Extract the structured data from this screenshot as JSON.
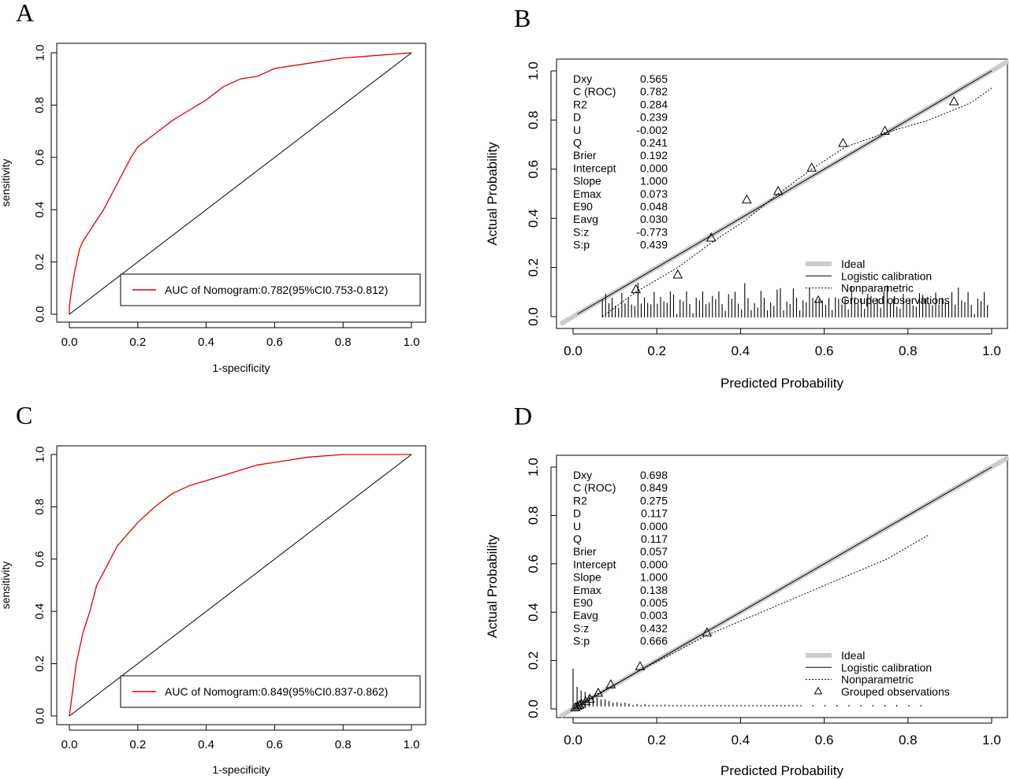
{
  "chart_data": [
    {
      "panel": "A",
      "type": "line",
      "xlabel": "1-specificity",
      "ylabel": "sensitivity",
      "xlim": [
        0,
        1
      ],
      "ylim": [
        0,
        1
      ],
      "xticks": [
        "0.0",
        "0.2",
        "0.4",
        "0.6",
        "0.8",
        "1.0"
      ],
      "yticks": [
        "0.0",
        "0.2",
        "0.4",
        "0.6",
        "0.8",
        "1.0"
      ],
      "legend": "AUC of Nomogram:0.782(95%CI0.753-0.812)",
      "legend_position": "bottom-right",
      "series": [
        {
          "color": "#e00000",
          "x": [
            0,
            0,
            0.005,
            0.01,
            0.015,
            0.02,
            0.025,
            0.03,
            0.04,
            0.05,
            0.06,
            0.07,
            0.08,
            0.1,
            0.12,
            0.14,
            0.16,
            0.18,
            0.2,
            0.22,
            0.25,
            0.28,
            0.3,
            0.35,
            0.4,
            0.45,
            0.5,
            0.55,
            0.6,
            0.7,
            0.8,
            0.9,
            1.0
          ],
          "y": [
            0,
            0.03,
            0.08,
            0.12,
            0.16,
            0.19,
            0.22,
            0.25,
            0.28,
            0.3,
            0.32,
            0.34,
            0.36,
            0.4,
            0.45,
            0.5,
            0.55,
            0.6,
            0.64,
            0.66,
            0.69,
            0.72,
            0.74,
            0.78,
            0.82,
            0.87,
            0.9,
            0.91,
            0.94,
            0.96,
            0.98,
            0.99,
            1.0
          ]
        },
        {
          "color": "#000000",
          "x": [
            0,
            1
          ],
          "y": [
            0,
            1
          ]
        }
      ]
    },
    {
      "panel": "B",
      "type": "line",
      "xlabel": "Predicted Probability",
      "ylabel": "Actual Probability",
      "xlim": [
        0,
        1
      ],
      "ylim": [
        0,
        1
      ],
      "xticks": [
        "0.0",
        "0.2",
        "0.4",
        "0.6",
        "0.8",
        "1.0"
      ],
      "yticks": [
        "0.0",
        "0.2",
        "0.4",
        "0.6",
        "0.8",
        "1.0"
      ],
      "stats": [
        [
          "Dxy",
          "0.565"
        ],
        [
          "C (ROC)",
          "0.782"
        ],
        [
          "R2",
          "0.284"
        ],
        [
          "D",
          "0.239"
        ],
        [
          "U",
          "-0.002"
        ],
        [
          "Q",
          "0.241"
        ],
        [
          "Brier",
          "0.192"
        ],
        [
          "Intercept",
          "0.000"
        ],
        [
          "Slope",
          "1.000"
        ],
        [
          "Emax",
          "0.073"
        ],
        [
          "E90",
          "0.048"
        ],
        [
          "Eavg",
          "0.030"
        ],
        [
          "S:z",
          "-0.773"
        ],
        [
          "S:p",
          "0.439"
        ]
      ],
      "legend": [
        "Ideal",
        "Logistic calibration",
        "Nonparametric",
        "Grouped observations"
      ],
      "legend_position": "bottom-right",
      "logistic": {
        "x": [
          0.01,
          1.0
        ],
        "y": [
          0.01,
          1.0
        ]
      },
      "nonparametric": {
        "x": [
          0.07,
          0.15,
          0.25,
          0.33,
          0.41,
          0.49,
          0.57,
          0.65,
          0.75,
          0.85,
          0.95,
          1.0
        ],
        "y": [
          0.0,
          0.1,
          0.2,
          0.3,
          0.39,
          0.5,
          0.6,
          0.69,
          0.75,
          0.8,
          0.87,
          0.93
        ]
      },
      "grouped": {
        "x": [
          0.15,
          0.25,
          0.33,
          0.415,
          0.49,
          0.57,
          0.645,
          0.745,
          0.91
        ],
        "y": [
          0.11,
          0.17,
          0.32,
          0.475,
          0.51,
          0.605,
          0.705,
          0.755,
          0.875
        ]
      },
      "rug": {
        "x_from": 0.07,
        "x_to": 0.99,
        "count": 120
      }
    },
    {
      "panel": "C",
      "type": "line",
      "xlabel": "1-specificity",
      "ylabel": "sensitivity",
      "xlim": [
        0,
        1
      ],
      "ylim": [
        0,
        1
      ],
      "xticks": [
        "0.0",
        "0.2",
        "0.4",
        "0.6",
        "0.8",
        "1.0"
      ],
      "yticks": [
        "0.0",
        "0.2",
        "0.4",
        "0.6",
        "0.8",
        "1.0"
      ],
      "legend": "AUC of Nomogram:0.849(95%CI0.837-0.862)",
      "legend_position": "bottom-right",
      "series": [
        {
          "color": "#e00000",
          "x": [
            0,
            0.005,
            0.01,
            0.015,
            0.02,
            0.03,
            0.04,
            0.05,
            0.06,
            0.07,
            0.08,
            0.1,
            0.12,
            0.14,
            0.16,
            0.18,
            0.2,
            0.25,
            0.3,
            0.35,
            0.4,
            0.45,
            0.5,
            0.55,
            0.6,
            0.7,
            0.8,
            0.9,
            1.0
          ],
          "y": [
            0,
            0.05,
            0.1,
            0.15,
            0.2,
            0.26,
            0.32,
            0.36,
            0.4,
            0.45,
            0.5,
            0.55,
            0.6,
            0.65,
            0.68,
            0.71,
            0.74,
            0.8,
            0.85,
            0.88,
            0.9,
            0.92,
            0.94,
            0.96,
            0.97,
            0.99,
            1.0,
            1.0,
            1.0
          ]
        },
        {
          "color": "#000000",
          "x": [
            0,
            1
          ],
          "y": [
            0,
            1
          ]
        }
      ]
    },
    {
      "panel": "D",
      "type": "line",
      "xlabel": "Predicted Probability",
      "ylabel": "Actual Probability",
      "xlim": [
        0,
        1
      ],
      "ylim": [
        0,
        1
      ],
      "xticks": [
        "0.0",
        "0.2",
        "0.4",
        "0.6",
        "0.8",
        "1.0"
      ],
      "yticks": [
        "0.0",
        "0.2",
        "0.4",
        "0.6",
        "0.8",
        "1.0"
      ],
      "stats": [
        [
          "Dxy",
          "0.698"
        ],
        [
          "C (ROC)",
          "0.849"
        ],
        [
          "R2",
          "0.275"
        ],
        [
          "D",
          "0.117"
        ],
        [
          "U",
          "0.000"
        ],
        [
          "Q",
          "0.117"
        ],
        [
          "Brier",
          "0.057"
        ],
        [
          "Intercept",
          "0.000"
        ],
        [
          "Slope",
          "1.000"
        ],
        [
          "Emax",
          "0.138"
        ],
        [
          "E90",
          "0.005"
        ],
        [
          "Eavg",
          "0.003"
        ],
        [
          "S:z",
          "0.432"
        ],
        [
          "S:p",
          "0.666"
        ]
      ],
      "legend": [
        "Ideal",
        "Logistic calibration",
        "Nonparametric",
        "Grouped observations"
      ],
      "legend_position": "bottom-right",
      "logistic": {
        "x": [
          0.0,
          1.0
        ],
        "y": [
          0.0,
          1.0
        ]
      },
      "nonparametric": {
        "x": [
          0.0,
          0.05,
          0.1,
          0.16,
          0.25,
          0.32,
          0.45,
          0.6,
          0.75,
          0.85
        ],
        "y": [
          0.0,
          0.055,
          0.1,
          0.16,
          0.24,
          0.305,
          0.4,
          0.51,
          0.62,
          0.72
        ]
      },
      "grouped": {
        "x": [
          0.005,
          0.01,
          0.015,
          0.02,
          0.03,
          0.04,
          0.06,
          0.09,
          0.16,
          0.32
        ],
        "y": [
          0.005,
          0.01,
          0.015,
          0.02,
          0.03,
          0.04,
          0.065,
          0.1,
          0.175,
          0.315
        ]
      },
      "rug": {
        "x_from": 0.0,
        "x_to": 0.85,
        "count": 90
      }
    }
  ]
}
